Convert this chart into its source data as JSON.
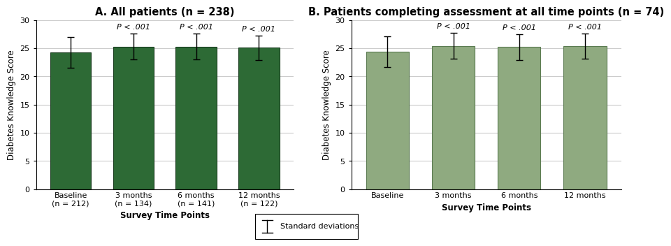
{
  "panel_A": {
    "title": "A. All patients (n = 238)",
    "categories": [
      "Baseline\n(n = 212)",
      "3 months\n(n = 134)",
      "6 months\n(n = 141)",
      "12 months\n(n = 122)"
    ],
    "values": [
      24.3,
      25.3,
      25.3,
      25.1
    ],
    "errors": [
      2.7,
      2.3,
      2.3,
      2.2
    ],
    "pvalues": [
      null,
      "P < .001",
      "P < .001",
      "P < .001"
    ],
    "bar_color": "#2d6a35",
    "bar_edge_color": "#1a3d20",
    "ylabel": "Diabetes Knowledge Score",
    "xlabel": "Survey Time Points",
    "ylim": [
      0,
      30
    ],
    "yticks": [
      0,
      5,
      10,
      15,
      20,
      25,
      30
    ]
  },
  "panel_B": {
    "title": "B. Patients completing assessment at all time points (n = 74)",
    "categories": [
      "Baseline",
      "3 months",
      "6 months",
      "12 months"
    ],
    "values": [
      24.4,
      25.4,
      25.2,
      25.4
    ],
    "errors": [
      2.7,
      2.3,
      2.3,
      2.2
    ],
    "pvalues": [
      null,
      "P < .001",
      "P < .001",
      "P < .001"
    ],
    "bar_color": "#8faa80",
    "bar_edge_color": "#5a7a50",
    "ylabel": "Diabetes Knowledge Score",
    "xlabel": "Survey Time Points",
    "ylim": [
      0,
      30
    ],
    "yticks": [
      0,
      5,
      10,
      15,
      20,
      25,
      30
    ]
  },
  "legend_label": "Standard deviations",
  "background_color": "#ffffff",
  "plot_bg_color": "#ffffff",
  "grid_color": "#cccccc",
  "title_fontsize": 10.5,
  "label_fontsize": 8.5,
  "tick_fontsize": 8,
  "pval_fontsize": 8
}
